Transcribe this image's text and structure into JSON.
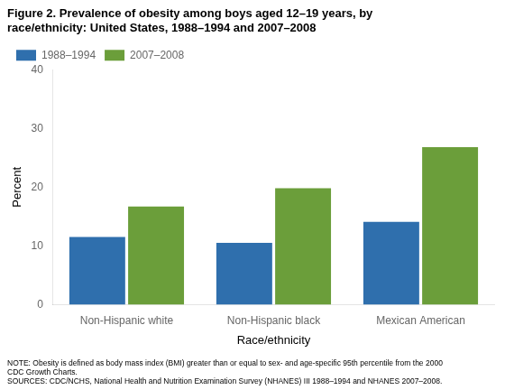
{
  "chart_data": {
    "type": "bar",
    "title": "Figure 2. Prevalence of obesity among boys aged 12–19 years, by\nrace/ethnicity: United States, 1988–1994 and 2007–2008",
    "annotations": [
      "NOTE: Obesity is defined as body mass index (BMI) greater than or equal to sex- and age-specific 95th percentile from the 2000",
      "CDC Growth Charts.",
      "SOURCES: CDC/NCHS, National Health and Nutrition Examination Survey (NHANES) III 1988–1994 and NHANES 2007–2008."
    ],
    "xlabel": "Race/ethnicity",
    "ylabel": "Percent",
    "categories": [
      "Non-Hispanic white",
      "Non-Hispanic black",
      "Mexican American"
    ],
    "series": [
      {
        "name": "1988–1994",
        "color": "#2f6fad",
        "values": [
          11.5,
          10.5,
          14.1
        ]
      },
      {
        "name": "2007–2008",
        "color": "#6b9e3a",
        "values": [
          16.7,
          19.8,
          26.8
        ]
      }
    ],
    "ylim": [
      0,
      40
    ],
    "yticks": [
      0,
      10,
      20,
      30,
      40
    ],
    "grid": false,
    "legend": "upper left"
  }
}
